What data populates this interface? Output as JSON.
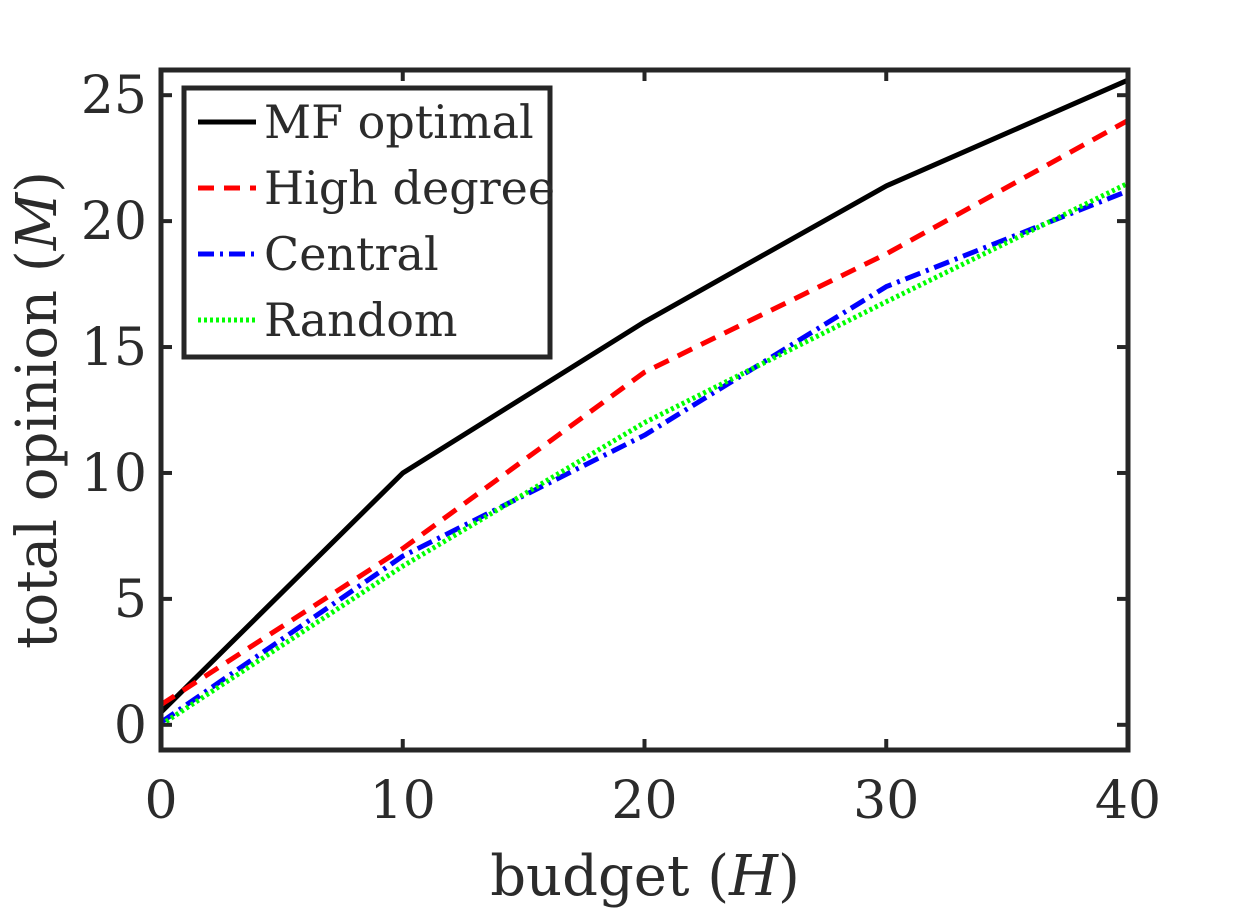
{
  "chart_data": {
    "type": "line",
    "title": "",
    "xlabel": "budget",
    "xlabel_symbol": "H",
    "ylabel": "total opinion",
    "ylabel_symbol": "M",
    "xlim": [
      0,
      40
    ],
    "ylim": [
      -1,
      26
    ],
    "xticks": [
      0,
      10,
      20,
      30,
      40
    ],
    "yticks": [
      0,
      5,
      10,
      15,
      20,
      25
    ],
    "xtick_labels": [
      "0",
      "10",
      "20",
      "30",
      "40"
    ],
    "ytick_labels": [
      "0",
      "5",
      "10",
      "15",
      "20",
      "25"
    ],
    "grid": false,
    "legend_position": "top-left",
    "series": [
      {
        "name": "MF optimal",
        "color": "#000000",
        "style": "solid",
        "x": [
          0,
          10,
          20,
          30,
          40
        ],
        "y": [
          0.5,
          10.0,
          16.0,
          21.4,
          25.6
        ]
      },
      {
        "name": "High degree",
        "color": "#ff0000",
        "style": "dashed",
        "x": [
          0,
          10,
          20,
          30,
          40
        ],
        "y": [
          0.8,
          7.0,
          14.0,
          18.7,
          24.0
        ]
      },
      {
        "name": "Central",
        "color": "#0000ff",
        "style": "dashdot",
        "x": [
          0,
          10,
          20,
          30,
          40
        ],
        "y": [
          0.1,
          6.7,
          11.5,
          17.4,
          21.2
        ]
      },
      {
        "name": "Random",
        "color": "#00ff00",
        "style": "dotted",
        "x": [
          0,
          10,
          20,
          30,
          40
        ],
        "y": [
          0.0,
          6.3,
          12.0,
          16.8,
          21.5
        ]
      }
    ]
  }
}
